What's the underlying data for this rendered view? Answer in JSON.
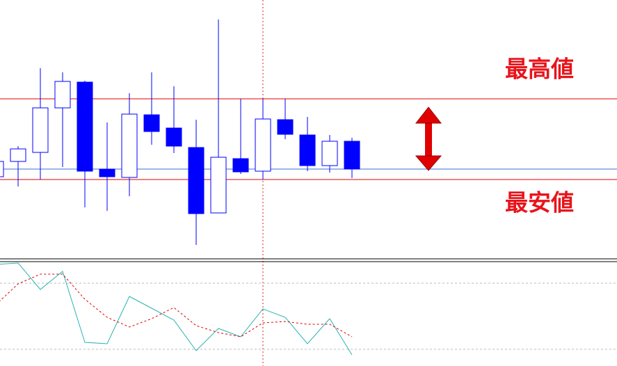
{
  "chart_data": [
    {
      "type": "candlestick",
      "annotations": [
        "最高値",
        "最安値"
      ],
      "up_color": "#ffffff",
      "down_color": "#0000ff",
      "edge_color": "#0000ff",
      "ylim": [
        0,
        370
      ],
      "hlines": [
        {
          "value": 228,
          "color": "#e00000"
        },
        {
          "value": 112,
          "color": "#e00000"
        },
        {
          "value": 127,
          "color": "#3a6fd8"
        }
      ],
      "open": [
        116,
        138,
        151,
        215,
        252,
        127,
        115,
        205,
        186,
        158,
        64,
        142,
        124,
        198,
        176,
        132,
        167
      ],
      "high": [
        138,
        160,
        272,
        266,
        254,
        194,
        236,
        266,
        246,
        198,
        342,
        228,
        228,
        228,
        202,
        176,
        172
      ],
      "low": [
        116,
        102,
        112,
        130,
        72,
        67,
        88,
        162,
        150,
        18,
        64,
        120,
        112,
        170,
        124,
        122,
        114
      ],
      "close": [
        138,
        156,
        215,
        253,
        124,
        116,
        206,
        181,
        160,
        63,
        144,
        123,
        199,
        177,
        132,
        167,
        127
      ]
    },
    {
      "type": "line",
      "ylim": [
        0,
        150
      ],
      "series": [
        {
          "color": "#2bb3b3",
          "dash": false,
          "values": [
            146,
            148,
            110,
            136,
            34,
            32,
            100,
            83,
            66,
            22,
            54,
            42,
            82,
            70,
            32,
            68,
            16
          ]
        },
        {
          "color": "#e00000",
          "dash": true,
          "values": [
            88,
            118,
            132,
            132,
            96,
            70,
            56,
            68,
            84,
            58,
            48,
            42,
            62,
            64,
            60,
            60,
            42
          ]
        }
      ]
    }
  ]
}
